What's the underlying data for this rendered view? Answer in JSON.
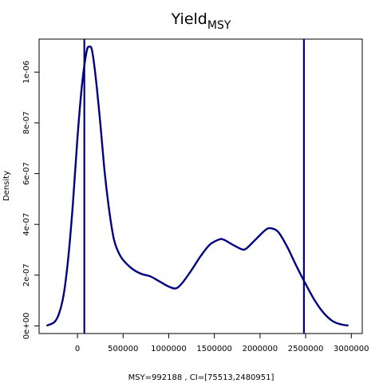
{
  "chart_data": {
    "type": "line",
    "title": "Yield",
    "title_subscript": "MSY",
    "xlabel": "MSY=992188 , CI=[75513,2480951]",
    "ylabel": "Density",
    "xlim": [
      -420000,
      3120000
    ],
    "ylim": [
      -3e-08,
      1.13e-06
    ],
    "x_ticks": [
      0,
      500000,
      1000000,
      1500000,
      2000000,
      2500000,
      3000000
    ],
    "x_tick_labels": [
      "0",
      "500000",
      "1000000",
      "1500000",
      "2000000",
      "2500000",
      "3000000"
    ],
    "y_ticks": [
      0,
      2e-07,
      4e-07,
      6e-07,
      8e-07,
      1e-06
    ],
    "y_tick_labels": [
      "0e+00",
      "2e-07",
      "4e-07",
      "6e-07",
      "8e-07",
      "1e-06"
    ],
    "grid": false,
    "line_color": "#000080",
    "series": [
      {
        "x": [
          -330000,
          -250000,
          -200000,
          -150000,
          -100000,
          -50000,
          0,
          50000,
          100000,
          130000,
          160000,
          200000,
          250000,
          300000,
          350000,
          400000,
          450000,
          500000,
          600000,
          700000,
          800000,
          900000,
          1000000,
          1080000,
          1150000,
          1250000,
          1350000,
          1450000,
          1550000,
          1600000,
          1700000,
          1800000,
          1850000,
          1950000,
          2050000,
          2110000,
          2200000,
          2300000,
          2400000,
          2500000,
          2600000,
          2700000,
          2800000,
          2900000,
          2960000
        ],
        "y": [
          2e-09,
          1.6e-08,
          5e-08,
          1.25e-07,
          2.7e-07,
          4.8e-07,
          7.4e-07,
          9.5e-07,
          1.08e-06,
          1.1e-06,
          1.085e-06,
          9.8e-07,
          8e-07,
          6e-07,
          4.5e-07,
          3.4e-07,
          2.9e-07,
          2.6e-07,
          2.25e-07,
          2.05e-07,
          1.95e-07,
          1.75e-07,
          1.55e-07,
          1.48e-07,
          1.7e-07,
          2.2e-07,
          2.75e-07,
          3.2e-07,
          3.4e-07,
          3.4e-07,
          3.2e-07,
          3.02e-07,
          3.05e-07,
          3.4e-07,
          3.75e-07,
          3.85e-07,
          3.7e-07,
          3.1e-07,
          2.35e-07,
          1.65e-07,
          1e-07,
          5e-08,
          1.8e-08,
          5e-09,
          2e-09
        ]
      }
    ],
    "vlines": [
      75513,
      2480951
    ]
  }
}
